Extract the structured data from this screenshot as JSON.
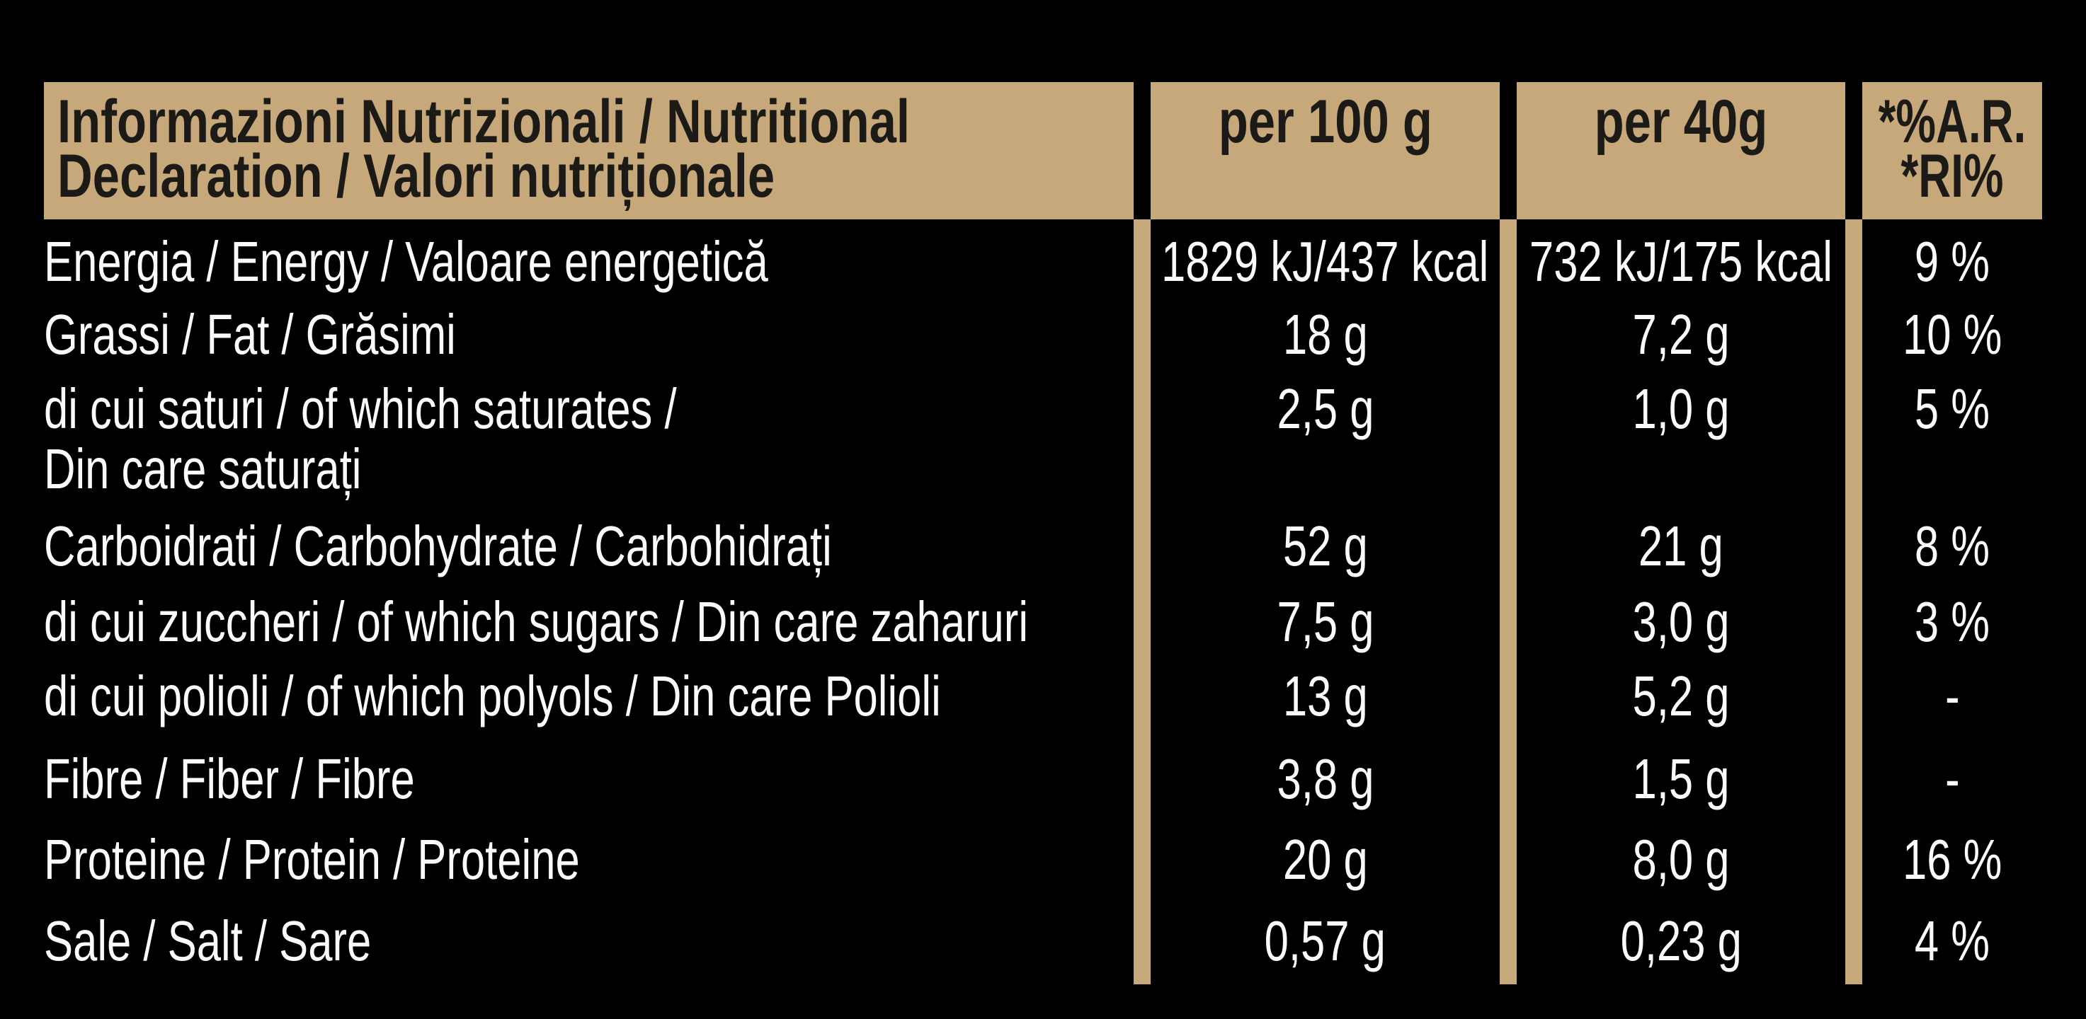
{
  "header": {
    "title_line1": "Informazioni Nutrizionali / Nutritional",
    "title_line2": "Declaration / Valori nutriționale",
    "col_per100": "per 100 g",
    "col_per40": "per 40g",
    "col_ri_line1": "*%A.R.",
    "col_ri_line2": "*RI%"
  },
  "rows": [
    {
      "label": "Energia / Energy / Valoare energetică",
      "per100": "1829 kJ/437 kcal",
      "per40": "732 kJ/175 kcal",
      "ri": "9 %"
    },
    {
      "label": "Grassi / Fat / Grăsimi",
      "per100": "18 g",
      "per40": "7,2 g",
      "ri": "10 %"
    },
    {
      "label": "di cui saturi / of which saturates /",
      "label_line2": "Din care saturați",
      "per100": "2,5 g",
      "per40": "1,0 g",
      "ri": "5 %"
    },
    {
      "label": "Carboidrati / Carbohydrate / Carbohidrați",
      "per100": "52 g",
      "per40": "21 g",
      "ri": "8 %"
    },
    {
      "label": "di cui zuccheri / of which sugars / Din care zaharuri",
      "per100": "7,5 g",
      "per40": "3,0 g",
      "ri": "3 %"
    },
    {
      "label": "di cui polioli / of which polyols / Din care Polioli",
      "per100": "13 g",
      "per40": "5,2 g",
      "ri": "-"
    },
    {
      "label": "Fibre / Fiber / Fibre",
      "per100": "3,8 g",
      "per40": "1,5 g",
      "ri": "-"
    },
    {
      "label": "Proteine / Protein / Proteine",
      "per100": "20 g",
      "per40": "8,0 g",
      "ri": "16 %"
    },
    {
      "label": "Sale / Salt / Sare",
      "per100": "0,57 g",
      "per40": "0,23 g",
      "ri": "4 %"
    }
  ],
  "colors": {
    "background": "#000000",
    "gold": "#c7a87b",
    "text": "#fafafa",
    "header_text": "#1c1a17"
  }
}
